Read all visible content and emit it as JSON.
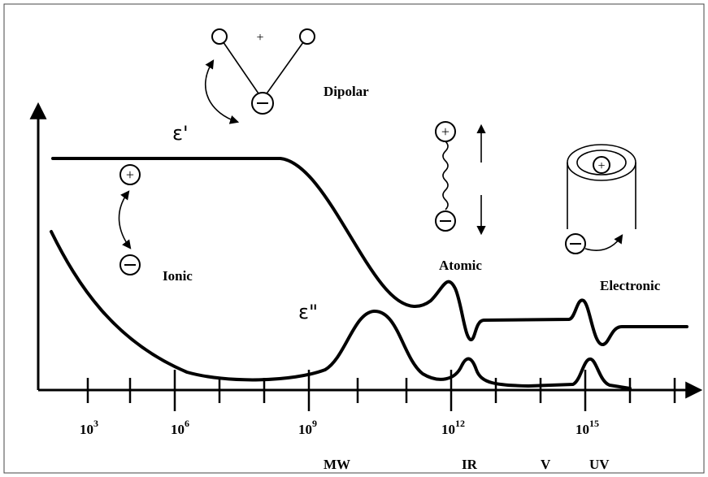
{
  "curves": {
    "real": "ε'",
    "imaginary": "ε\""
  },
  "mechanisms": {
    "dipolar": "Dipolar",
    "ionic": "Ionic",
    "atomic": "Atomic",
    "electronic": "Electronic"
  },
  "frequency_ticks": [
    {
      "base": "10",
      "exp": "3"
    },
    {
      "base": "10",
      "exp": "6"
    },
    {
      "base": "10",
      "exp": "9"
    },
    {
      "base": "10",
      "exp": "12"
    },
    {
      "base": "10",
      "exp": "15"
    }
  ],
  "bands": [
    "MW",
    "IR",
    "V",
    "UV"
  ]
}
